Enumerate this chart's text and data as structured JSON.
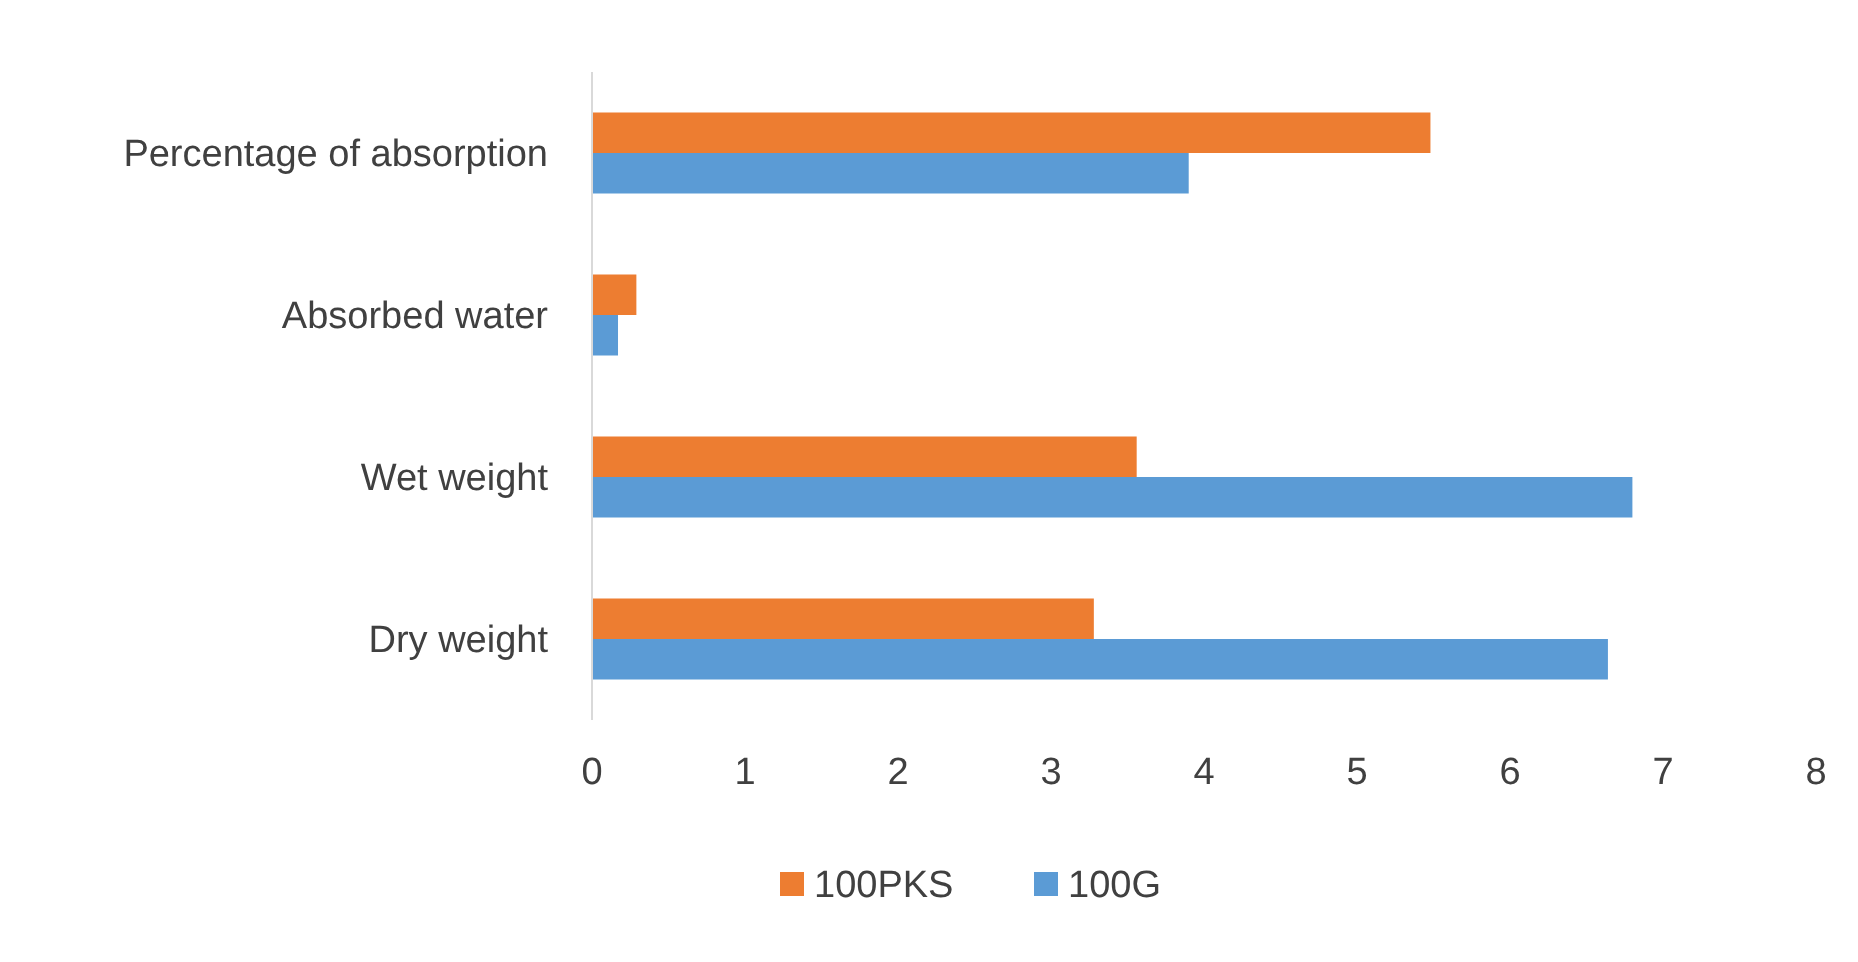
{
  "chart_data": {
    "type": "bar",
    "orientation": "horizontal",
    "categories": [
      "Percentage of absorption",
      "Absorbed water",
      "Wet weight",
      "Dry weight"
    ],
    "series": [
      {
        "name": "100PKS",
        "color": "#ed7d31",
        "values": [
          5.48,
          0.29,
          3.56,
          3.28
        ]
      },
      {
        "name": "100G",
        "color": "#5b9bd5",
        "values": [
          3.9,
          0.17,
          6.8,
          6.64
        ]
      }
    ],
    "xlim": [
      0,
      8
    ],
    "xticks": [
      0,
      1,
      2,
      3,
      4,
      5,
      6,
      7,
      8
    ],
    "grid": false,
    "legend": "bottom"
  }
}
